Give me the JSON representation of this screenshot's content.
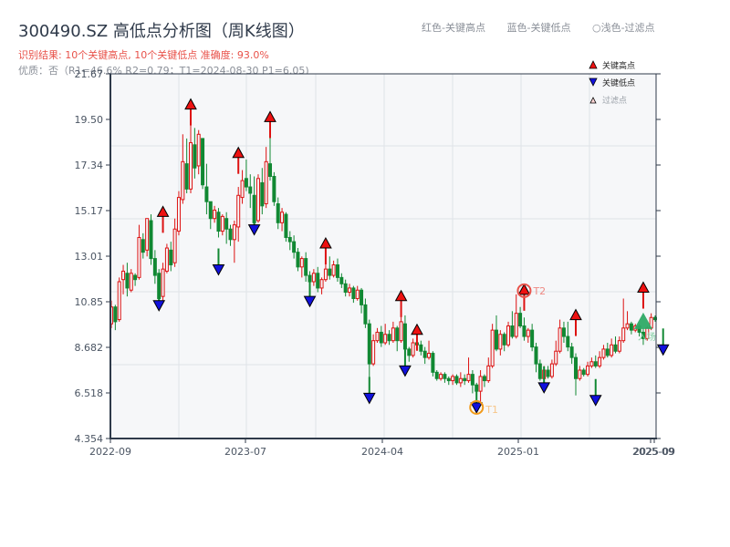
{
  "header": {
    "title": "300490.SZ 高低点分析图（周K线图）",
    "subtitle": "识别结果: 10个关键高点, 10个关键低点  准确度: 93.0%",
    "quality": "优质：否（R1=46.6%  R2=0.79；T1=2024-08-30 P1=6.05)"
  },
  "top_legend": {
    "red": "红色-关键高点",
    "blue": "蓝色-关键低点",
    "light": "○浅色-过滤点"
  },
  "legend": {
    "items": [
      {
        "label": "关键高点",
        "color": "#ee1111",
        "marker": "triangle-up"
      },
      {
        "label": "关键低点",
        "color": "#1111dd",
        "marker": "triangle-down"
      },
      {
        "label": "过滤点",
        "color": "#ffd6d6",
        "marker": "triangle-up-hollow"
      }
    ]
  },
  "colors": {
    "up": "#dd1111",
    "down": "#118833",
    "high_marker": "#ee1111",
    "low_marker": "#1111dd",
    "t1": "#f29a1a",
    "t2": "#e8524a",
    "entry": "#2eaa66",
    "axis": "#2f3a4a",
    "plot_bg": "#f6f7f9",
    "grid": "#dfe3e8"
  },
  "chart_data": {
    "type": "candlestick",
    "title": "300490.SZ 高低点分析图（周K线图）",
    "xlabel": "",
    "ylabel": "",
    "ylim": [
      4.354,
      21.67
    ],
    "yticks": [
      "4.354",
      "6.518",
      "8.682",
      "10.85",
      "13.01",
      "15.17",
      "17.34",
      "19.50",
      "21.67"
    ],
    "xticks": [
      "2022-09",
      "2023-07",
      "2024-04",
      "2025-01",
      "2025-09"
    ],
    "xtick_overlap_label": "2025-09",
    "grid": true,
    "legend_position": "upper right",
    "candles": [
      [
        9.8,
        10.6,
        10.9,
        9.6
      ],
      [
        10.6,
        9.9,
        10.7,
        9.5
      ],
      [
        10.0,
        11.8,
        12.0,
        9.9
      ],
      [
        11.9,
        12.3,
        12.6,
        11.2
      ],
      [
        12.2,
        11.5,
        12.7,
        11.1
      ],
      [
        11.4,
        12.2,
        12.4,
        11.3
      ],
      [
        12.1,
        11.9,
        12.2,
        11.6
      ],
      [
        12.0,
        13.9,
        14.5,
        11.9
      ],
      [
        13.8,
        13.2,
        14.1,
        12.9
      ],
      [
        13.3,
        14.8,
        14.8,
        13.0
      ],
      [
        14.7,
        12.9,
        15.0,
        12.6
      ],
      [
        12.9,
        12.1,
        13.3,
        11.7
      ],
      [
        12.2,
        11.0,
        12.4,
        10.9
      ],
      [
        11.1,
        12.4,
        12.7,
        10.8
      ],
      [
        12.3,
        13.4,
        13.6,
        12.2
      ],
      [
        13.3,
        12.6,
        13.7,
        12.3
      ],
      [
        12.7,
        14.3,
        14.8,
        12.5
      ],
      [
        14.2,
        15.8,
        16.1,
        14.0
      ],
      [
        15.7,
        17.5,
        18.8,
        15.5
      ],
      [
        17.4,
        16.2,
        18.6,
        16.0
      ],
      [
        16.2,
        18.4,
        20.0,
        16.0
      ],
      [
        18.3,
        17.2,
        19.1,
        16.7
      ],
      [
        17.3,
        18.8,
        19.0,
        16.9
      ],
      [
        18.6,
        16.4,
        18.5,
        16.2
      ],
      [
        16.3,
        15.6,
        17.4,
        15.0
      ],
      [
        15.6,
        14.8,
        15.6,
        14.3
      ],
      [
        14.8,
        15.2,
        15.4,
        14.6
      ],
      [
        15.1,
        14.2,
        15.3,
        13.9
      ],
      [
        14.2,
        14.9,
        15.0,
        14.0
      ],
      [
        14.8,
        14.3,
        15.1,
        13.6
      ],
      [
        14.3,
        13.8,
        14.5,
        13.5
      ],
      [
        13.8,
        14.5,
        14.7,
        12.7
      ],
      [
        14.4,
        15.9,
        16.3,
        13.7
      ],
      [
        15.8,
        16.6,
        17.1,
        15.5
      ],
      [
        16.7,
        16.3,
        17.6,
        16.1
      ],
      [
        16.3,
        16.0,
        16.9,
        15.3
      ],
      [
        15.9,
        14.6,
        16.8,
        14.5
      ],
      [
        14.7,
        16.7,
        16.9,
        14.6
      ],
      [
        16.5,
        15.4,
        17.2,
        15.0
      ],
      [
        15.5,
        17.5,
        18.2,
        15.3
      ],
      [
        17.4,
        16.8,
        19.4,
        16.6
      ],
      [
        16.8,
        15.6,
        17.0,
        15.4
      ],
      [
        15.5,
        14.6,
        15.8,
        14.3
      ],
      [
        14.6,
        15.1,
        15.3,
        14.2
      ],
      [
        15.0,
        13.9,
        15.1,
        13.7
      ],
      [
        13.9,
        13.7,
        14.2,
        13.3
      ],
      [
        13.7,
        13.2,
        14.0,
        12.9
      ],
      [
        13.2,
        12.5,
        13.4,
        12.3
      ],
      [
        12.5,
        12.9,
        13.0,
        12.0
      ],
      [
        12.9,
        12.1,
        13.2,
        11.8
      ],
      [
        12.1,
        11.8,
        12.3,
        11.5
      ],
      [
        11.8,
        12.2,
        12.4,
        11.6
      ],
      [
        12.2,
        11.5,
        12.5,
        11.3
      ],
      [
        11.5,
        11.9,
        12.0,
        11.2
      ],
      [
        11.9,
        12.4,
        13.2,
        11.8
      ],
      [
        12.4,
        12.1,
        13.0,
        11.9
      ],
      [
        12.1,
        12.6,
        12.8,
        12.0
      ],
      [
        12.6,
        12.0,
        12.9,
        11.8
      ],
      [
        12.0,
        11.7,
        12.2,
        11.5
      ],
      [
        11.7,
        11.3,
        11.9,
        11.1
      ],
      [
        11.3,
        11.5,
        11.7,
        11.1
      ],
      [
        11.5,
        11.0,
        11.6,
        10.8
      ],
      [
        11.0,
        11.4,
        11.6,
        10.9
      ],
      [
        11.4,
        10.7,
        11.5,
        10.3
      ],
      [
        10.7,
        9.8,
        11.0,
        9.6
      ],
      [
        9.8,
        7.9,
        10.0,
        6.7
      ],
      [
        7.9,
        9.0,
        9.3,
        7.8
      ],
      [
        9.0,
        9.4,
        9.6,
        8.9
      ],
      [
        9.4,
        8.9,
        9.7,
        8.7
      ],
      [
        8.9,
        9.3,
        9.8,
        8.8
      ],
      [
        9.3,
        9.0,
        9.5,
        8.8
      ],
      [
        9.0,
        9.6,
        9.9,
        8.9
      ],
      [
        9.6,
        9.0,
        9.7,
        8.5
      ],
      [
        9.0,
        9.9,
        10.8,
        8.9
      ],
      [
        9.8,
        8.6,
        10.2,
        7.8
      ],
      [
        8.6,
        8.3,
        8.7,
        8.0
      ],
      [
        8.3,
        8.9,
        9.1,
        8.2
      ],
      [
        8.9,
        8.8,
        9.4,
        8.6
      ],
      [
        8.8,
        8.5,
        9.0,
        8.3
      ],
      [
        8.5,
        8.2,
        8.7,
        7.9
      ],
      [
        8.2,
        8.4,
        9.0,
        8.1
      ],
      [
        8.4,
        7.5,
        8.5,
        7.3
      ],
      [
        7.5,
        7.2,
        7.6,
        7.1
      ],
      [
        7.2,
        7.4,
        7.5,
        7.1
      ],
      [
        7.4,
        7.2,
        7.5,
        7.0
      ],
      [
        7.2,
        7.1,
        7.3,
        6.9
      ],
      [
        7.1,
        7.3,
        7.4,
        6.9
      ],
      [
        7.3,
        7.0,
        7.4,
        6.9
      ],
      [
        7.0,
        7.2,
        7.5,
        6.8
      ],
      [
        7.2,
        7.1,
        7.4,
        6.9
      ],
      [
        7.1,
        7.4,
        8.2,
        7.0
      ],
      [
        7.4,
        6.9,
        7.6,
        6.5
      ],
      [
        6.9,
        6.6,
        7.0,
        6.2
      ],
      [
        6.6,
        7.3,
        7.6,
        6.05
      ],
      [
        7.3,
        7.1,
        7.4,
        6.8
      ],
      [
        7.1,
        7.8,
        8.2,
        7.0
      ],
      [
        7.8,
        9.5,
        9.8,
        7.7
      ],
      [
        9.5,
        8.6,
        10.2,
        8.5
      ],
      [
        8.6,
        9.3,
        9.5,
        8.3
      ],
      [
        9.3,
        8.8,
        9.4,
        8.5
      ],
      [
        8.8,
        9.7,
        9.9,
        8.7
      ],
      [
        9.7,
        9.2,
        10.4,
        9.1
      ],
      [
        9.2,
        10.3,
        11.2,
        9.1
      ],
      [
        10.3,
        9.7,
        10.6,
        9.6
      ],
      [
        9.7,
        9.2,
        10.1,
        9.0
      ],
      [
        9.2,
        9.5,
        9.6,
        8.9
      ],
      [
        9.5,
        8.7,
        9.8,
        8.5
      ],
      [
        8.7,
        7.9,
        8.9,
        7.5
      ],
      [
        7.9,
        7.2,
        8.1,
        7.1
      ],
      [
        7.2,
        7.6,
        7.8,
        7.1
      ],
      [
        7.6,
        7.3,
        7.8,
        7.2
      ],
      [
        7.3,
        7.9,
        8.1,
        7.2
      ],
      [
        7.9,
        8.5,
        9.0,
        7.8
      ],
      [
        8.5,
        9.6,
        10.0,
        8.4
      ],
      [
        9.6,
        9.2,
        9.9,
        8.9
      ],
      [
        9.2,
        8.7,
        9.9,
        8.5
      ],
      [
        8.7,
        8.2,
        8.9,
        7.9
      ],
      [
        8.2,
        7.2,
        8.4,
        6.4
      ],
      [
        7.2,
        7.6,
        7.8,
        7.1
      ],
      [
        7.6,
        7.4,
        7.7,
        7.3
      ],
      [
        7.4,
        7.8,
        8.0,
        7.3
      ],
      [
        7.8,
        8.0,
        8.2,
        7.7
      ],
      [
        8.0,
        7.8,
        8.3,
        7.7
      ],
      [
        7.8,
        8.2,
        8.5,
        7.7
      ],
      [
        8.2,
        8.6,
        8.8,
        8.1
      ],
      [
        8.6,
        8.3,
        8.9,
        8.2
      ],
      [
        8.3,
        8.8,
        9.1,
        8.2
      ],
      [
        8.8,
        8.5,
        9.2,
        8.4
      ],
      [
        8.5,
        9.0,
        9.2,
        8.4
      ],
      [
        9.0,
        9.6,
        11.0,
        8.9
      ],
      [
        9.6,
        9.8,
        10.4,
        9.5
      ],
      [
        9.8,
        9.5,
        9.9,
        9.3
      ],
      [
        9.5,
        9.7,
        9.8,
        9.4
      ],
      [
        9.7,
        9.4,
        9.8,
        9.2
      ],
      [
        9.4,
        9.1,
        9.6,
        8.8
      ],
      [
        9.1,
        9.6,
        9.7,
        9.0
      ],
      [
        9.6,
        10.1,
        10.3,
        9.5
      ],
      [
        10.1,
        10.0,
        10.2,
        9.9
      ]
    ],
    "key_highs": [
      {
        "index": 13,
        "price": 14.9
      },
      {
        "index": 20,
        "price": 20.0
      },
      {
        "index": 32,
        "price": 17.7
      },
      {
        "index": 40,
        "price": 19.4
      },
      {
        "index": 54,
        "price": 13.4
      },
      {
        "index": 73,
        "price": 10.9
      },
      {
        "index": 77,
        "price": 9.3
      },
      {
        "index": 104,
        "price": 11.2
      },
      {
        "index": 117,
        "price": 10.0
      },
      {
        "index": 134,
        "price": 11.3
      }
    ],
    "key_lows": [
      {
        "index": 12,
        "price": 10.9
      },
      {
        "index": 27,
        "price": 12.6
      },
      {
        "index": 36,
        "price": 14.5
      },
      {
        "index": 50,
        "price": 11.1
      },
      {
        "index": 65,
        "price": 6.5
      },
      {
        "index": 74,
        "price": 7.8
      },
      {
        "index": 92,
        "price": 6.05
      },
      {
        "index": 109,
        "price": 7.0
      },
      {
        "index": 122,
        "price": 6.4
      },
      {
        "index": 139,
        "price": 8.8
      }
    ],
    "annotations": [
      {
        "label": "T1",
        "index": 92,
        "price": 6.05,
        "style": "orange-ring"
      },
      {
        "label": "T2",
        "index": 104,
        "price": 11.2,
        "style": "red-ring"
      },
      {
        "label": "入场",
        "index": 134,
        "price": 9.9,
        "style": "green-triangle"
      }
    ]
  }
}
